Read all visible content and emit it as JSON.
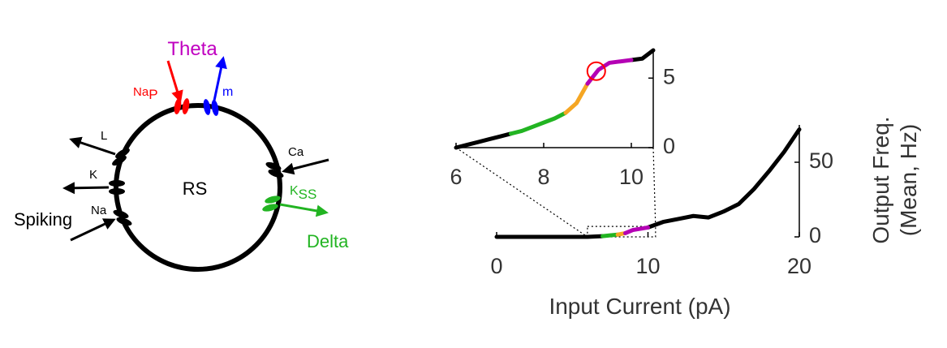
{
  "diagram": {
    "cell_label": "RS",
    "theta": "Theta",
    "delta": "Delta",
    "spiking": "Spiking",
    "channels": {
      "nap": {
        "base": "Na",
        "sub": "P"
      },
      "m": "m",
      "l": "L",
      "k": "K",
      "na": "Na",
      "ca": "Ca",
      "kss": {
        "base": "K",
        "sub": "SS"
      }
    }
  },
  "chart_data": [
    {
      "type": "line",
      "xlabel": "Input Current (pA)",
      "ylabel": [
        "Output Freq.",
        "(Mean, Hz)"
      ],
      "x": [
        0,
        2,
        4,
        6,
        7,
        7.5,
        8,
        8.5,
        9,
        10,
        11,
        12,
        13,
        14,
        15,
        16,
        17,
        18,
        19,
        20
      ],
      "series": [
        {
          "color": "#000000",
          "values": [
            0,
            0,
            0,
            0,
            0.5,
            null,
            null,
            null,
            null,
            6.3,
            10,
            12,
            14,
            13,
            17,
            22,
            32,
            44,
            57,
            72
          ]
        },
        {
          "color": "#22b422",
          "values": [
            null,
            null,
            null,
            null,
            0.5,
            1.0,
            1.5,
            null,
            null,
            null,
            null,
            null,
            null,
            null,
            null,
            null,
            null,
            null,
            null,
            null
          ]
        },
        {
          "color": "#f5a623",
          "values": [
            null,
            null,
            null,
            null,
            null,
            null,
            1.5,
            2.5,
            null,
            null,
            null,
            null,
            null,
            null,
            null,
            null,
            null,
            null,
            null,
            null
          ]
        },
        {
          "color": "#b400b4",
          "values": [
            null,
            null,
            null,
            null,
            null,
            null,
            null,
            2.5,
            4.6,
            6.3,
            null,
            null,
            null,
            null,
            null,
            null,
            null,
            null,
            null,
            null
          ]
        }
      ],
      "xlim": [
        0,
        20
      ],
      "ylim": [
        0,
        75
      ],
      "xticks": [
        0,
        10,
        20
      ],
      "yticks": [
        0,
        50
      ]
    },
    {
      "type": "line",
      "x": [
        6,
        6.25,
        6.5,
        6.75,
        7,
        7.25,
        7.5,
        7.75,
        8,
        8.25,
        8.5,
        8.75,
        9,
        9.25,
        9.5,
        9.75,
        10,
        10.25,
        10.5
      ],
      "series": [
        {
          "color": "#000000",
          "values": [
            0,
            0.2,
            0.4,
            0.6,
            0.8,
            1.0,
            null,
            null,
            null,
            null,
            null,
            null,
            null,
            null,
            null,
            null,
            6.3,
            6.4,
            7.0
          ]
        },
        {
          "color": "#22b422",
          "values": [
            null,
            null,
            null,
            null,
            null,
            1.0,
            1.2,
            1.5,
            1.8,
            2.1,
            2.5,
            null,
            null,
            null,
            null,
            null,
            null,
            null,
            null
          ]
        },
        {
          "color": "#f5a623",
          "values": [
            null,
            null,
            null,
            null,
            null,
            null,
            null,
            null,
            null,
            null,
            2.5,
            3.2,
            4.6,
            null,
            null,
            null,
            null,
            null,
            null
          ]
        },
        {
          "color": "#b400b4",
          "values": [
            null,
            null,
            null,
            null,
            null,
            null,
            null,
            null,
            null,
            null,
            null,
            null,
            4.6,
            5.6,
            6.1,
            6.2,
            6.3,
            null,
            null
          ]
        }
      ],
      "highlight": {
        "x": 9.2,
        "y": 5.5,
        "color": "#ff0000"
      },
      "xlim": [
        6,
        10.5
      ],
      "ylim": [
        0,
        7
      ],
      "xticks": [
        6,
        8,
        10
      ],
      "yticks": [
        0,
        5
      ]
    }
  ]
}
